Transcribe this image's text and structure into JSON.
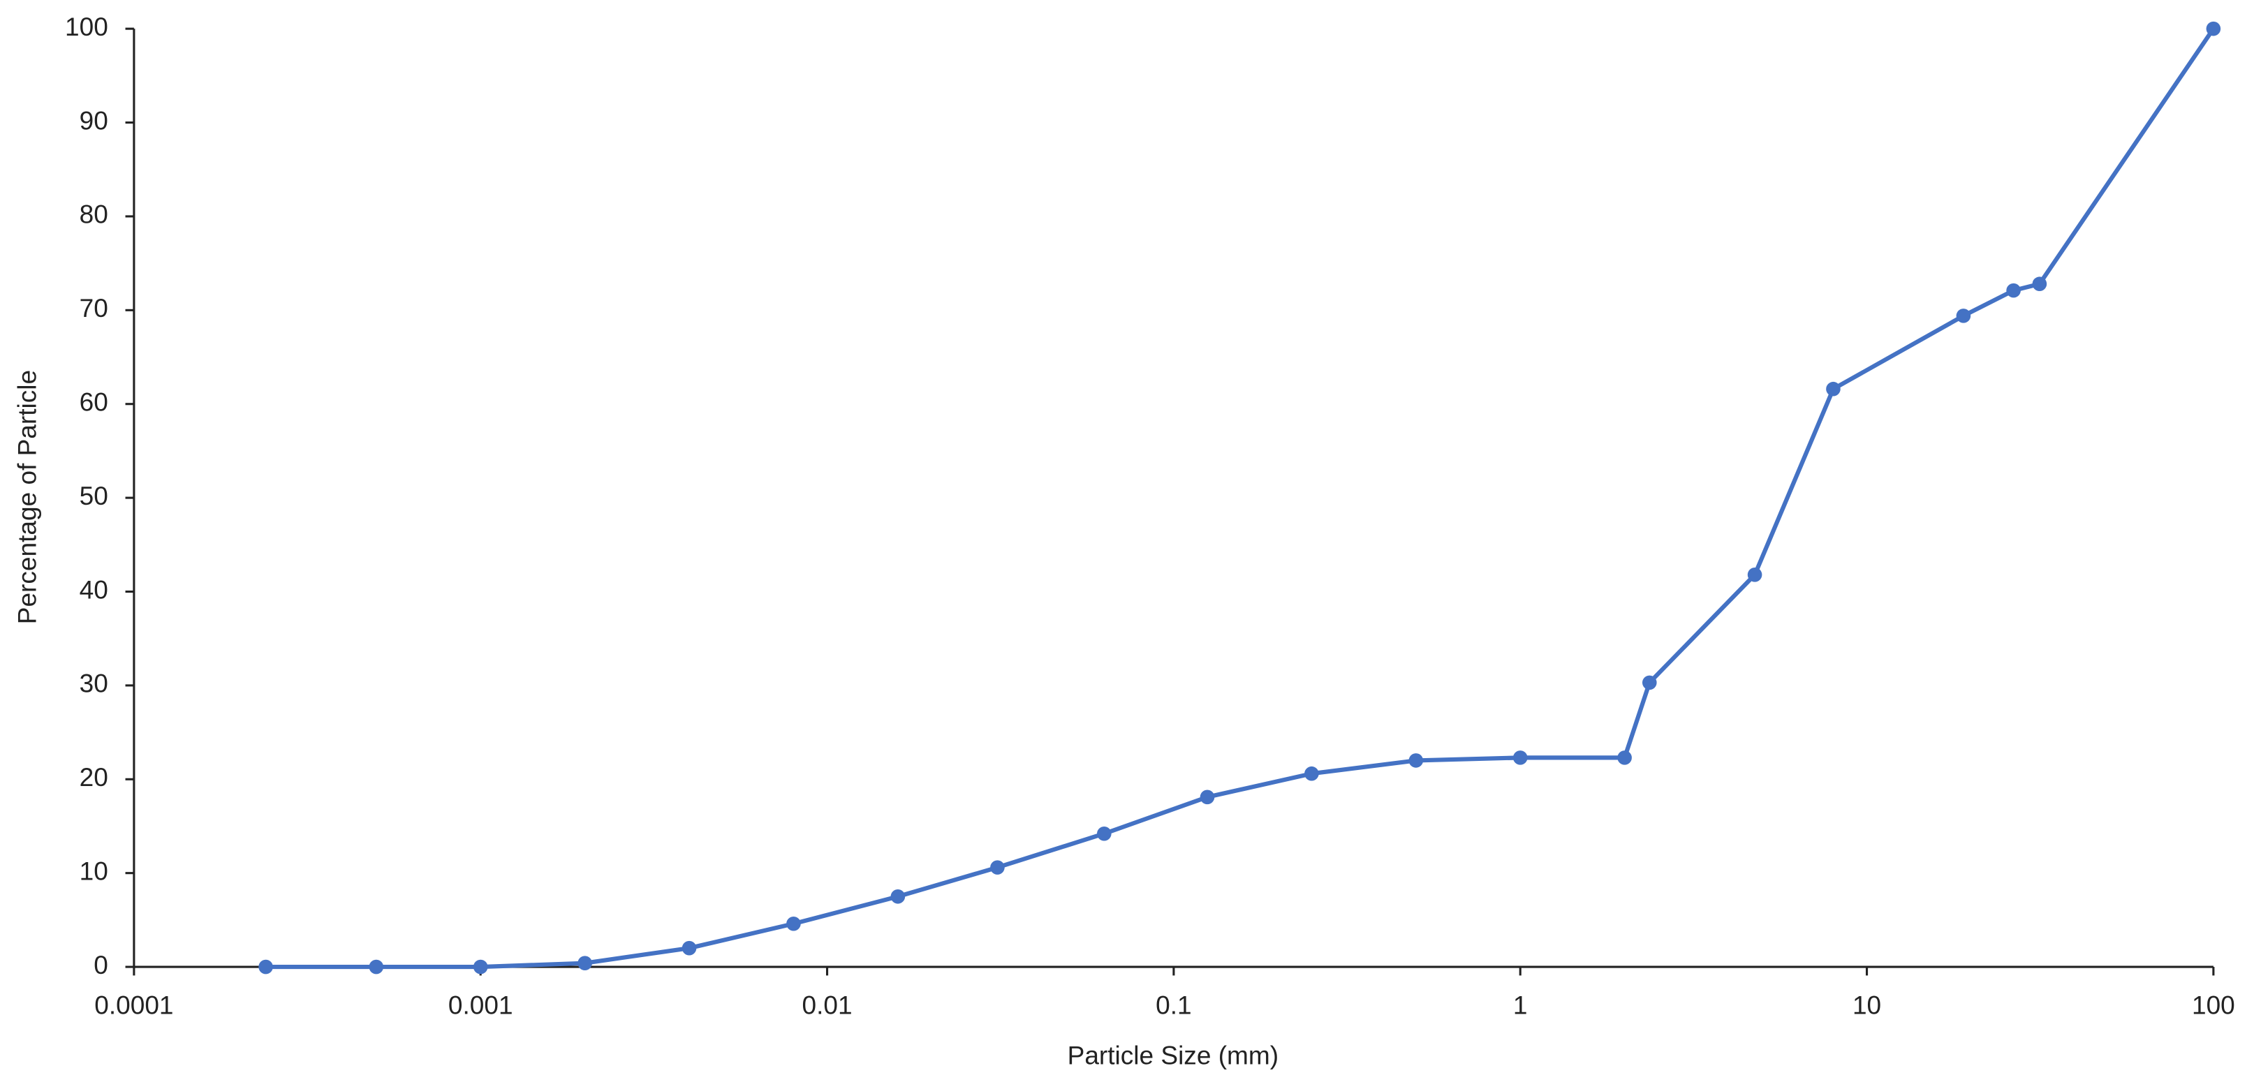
{
  "chart_data": {
    "type": "line",
    "x_label": "Particle Size (mm)",
    "y_label": "Percentage of Particle",
    "x_scale": "log",
    "x": [
      0.00024,
      0.0005,
      0.001,
      0.002,
      0.004,
      0.008,
      0.016,
      0.031,
      0.063,
      0.125,
      0.25,
      0.5,
      1,
      2,
      2.36,
      4.75,
      8,
      19,
      26.5,
      31.5,
      100
    ],
    "series": [
      {
        "name": "Percentage of Particle",
        "color": "#4472c4",
        "values": [
          0,
          0,
          0,
          0.4,
          2.0,
          4.6,
          7.5,
          10.6,
          14.2,
          18.1,
          20.6,
          22.0,
          22.3,
          22.3,
          30.3,
          41.8,
          61.6,
          69.4,
          72.1,
          72.8,
          100
        ]
      }
    ],
    "xlim": [
      0.0001,
      100
    ],
    "xticks": [
      0.0001,
      0.001,
      0.01,
      0.1,
      1,
      10,
      100
    ],
    "ylim": [
      0,
      100
    ],
    "yticks": [
      0,
      10,
      20,
      30,
      40,
      50,
      60,
      70,
      80,
      90,
      100
    ],
    "grid": false
  }
}
